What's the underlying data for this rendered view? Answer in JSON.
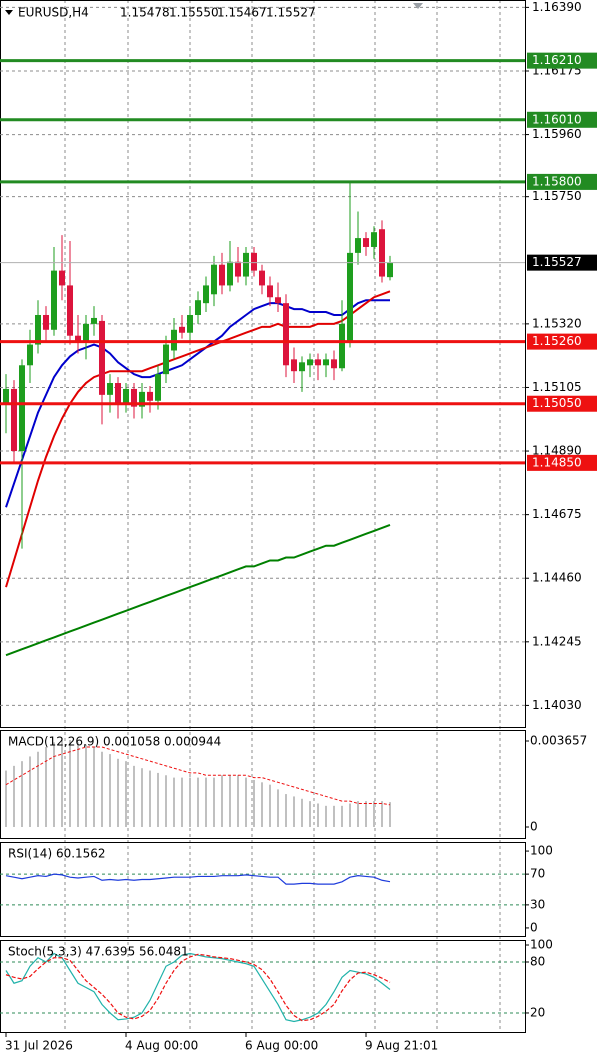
{
  "chart_data": [
    {
      "type": "candlestick",
      "title": "EURUSD,H4",
      "last_ohlc_labels": [
        "1.15478",
        "1.15550",
        "1.15467",
        "1.15527"
      ],
      "open": [
        1.1505,
        1.151,
        1.1489,
        1.1518,
        1.1525,
        1.1535,
        1.153,
        1.155,
        1.1545,
        1.1528,
        1.1526,
        1.1532,
        1.1533,
        1.1508,
        1.1512,
        1.1505,
        1.151,
        1.1504,
        1.1509,
        1.1506,
        1.1515,
        1.1523,
        1.1531,
        1.1529,
        1.1535,
        1.1539,
        1.1542,
        1.1552,
        1.1545,
        1.1553,
        1.1548,
        1.1556,
        1.155,
        1.1545,
        1.1541,
        1.1539,
        1.152,
        1.1516,
        1.1518,
        1.152,
        1.1518,
        1.152,
        1.1517,
        1.1526,
        1.1556,
        1.1561,
        1.1558,
        1.1564,
        1.15478
      ],
      "high": [
        1.1515,
        1.1513,
        1.152,
        1.153,
        1.154,
        1.1538,
        1.1558,
        1.1562,
        1.156,
        1.1535,
        1.1535,
        1.1538,
        1.1535,
        1.1515,
        1.1514,
        1.1512,
        1.1512,
        1.1512,
        1.1511,
        1.1518,
        1.1528,
        1.1534,
        1.1535,
        1.1538,
        1.1543,
        1.1548,
        1.1555,
        1.1556,
        1.156,
        1.1558,
        1.1558,
        1.1558,
        1.1552,
        1.1548,
        1.1546,
        1.1542,
        1.1524,
        1.1521,
        1.1522,
        1.1522,
        1.1522,
        1.1523,
        1.154,
        1.158,
        1.157,
        1.1563,
        1.1565,
        1.1567,
        1.1555
      ],
      "low": [
        1.1495,
        1.1485,
        1.1456,
        1.1512,
        1.1522,
        1.1526,
        1.1528,
        1.154,
        1.1525,
        1.1522,
        1.152,
        1.1528,
        1.1498,
        1.1502,
        1.15,
        1.1502,
        1.15,
        1.15,
        1.1502,
        1.1503,
        1.1512,
        1.152,
        1.1527,
        1.1526,
        1.1532,
        1.1536,
        1.1538,
        1.1542,
        1.1543,
        1.1546,
        1.1545,
        1.1548,
        1.1542,
        1.1538,
        1.1536,
        1.1514,
        1.1512,
        1.1509,
        1.1514,
        1.1513,
        1.1514,
        1.1513,
        1.1516,
        1.1524,
        1.1552,
        1.1555,
        1.1554,
        1.1546,
        1.15467
      ],
      "close": [
        1.151,
        1.1489,
        1.1518,
        1.1525,
        1.1535,
        1.153,
        1.155,
        1.1545,
        1.1528,
        1.1526,
        1.1532,
        1.1534,
        1.1508,
        1.1512,
        1.1505,
        1.151,
        1.1504,
        1.1509,
        1.1506,
        1.1515,
        1.1525,
        1.153,
        1.1529,
        1.1535,
        1.154,
        1.1545,
        1.1552,
        1.1545,
        1.1553,
        1.1548,
        1.1556,
        1.155,
        1.1545,
        1.1541,
        1.1539,
        1.1518,
        1.1516,
        1.1519,
        1.152,
        1.1518,
        1.152,
        1.1517,
        1.1532,
        1.1556,
        1.1561,
        1.1558,
        1.1563,
        1.1548,
        1.15527
      ],
      "color_up": "#1e9e1e",
      "color_down": "#dc143c",
      "overlays": [
        {
          "color": "#0000cc",
          "values": [
            1.147,
            1.1478,
            1.1486,
            1.1494,
            1.1502,
            1.1508,
            1.1514,
            1.1518,
            1.1521,
            1.1523,
            1.1524,
            1.1525,
            1.1524,
            1.1522,
            1.1519,
            1.1517,
            1.1515,
            1.1514,
            1.1514,
            1.1515,
            1.1516,
            1.1517,
            1.1518,
            1.152,
            1.1522,
            1.1524,
            1.1526,
            1.1528,
            1.1531,
            1.1533,
            1.1535,
            1.1537,
            1.1538,
            1.1539,
            1.1539,
            1.1538,
            1.1537,
            1.1537,
            1.1536,
            1.1536,
            1.1536,
            1.1535,
            1.1535,
            1.1537,
            1.1539,
            1.154,
            1.154,
            1.154,
            1.154
          ]
        },
        {
          "color": "#e00000",
          "values": [
            1.1443,
            1.1452,
            1.1461,
            1.147,
            1.1479,
            1.1487,
            1.1494,
            1.15,
            1.1505,
            1.1509,
            1.1512,
            1.1514,
            1.1515,
            1.1516,
            1.1516,
            1.1516,
            1.1516,
            1.1516,
            1.1517,
            1.1518,
            1.1519,
            1.152,
            1.1521,
            1.1522,
            1.1523,
            1.1524,
            1.1525,
            1.1526,
            1.1527,
            1.1528,
            1.1529,
            1.153,
            1.1531,
            1.1531,
            1.1532,
            1.1531,
            1.1531,
            1.1531,
            1.1531,
            1.1532,
            1.1532,
            1.1532,
            1.1533,
            1.1535,
            1.1537,
            1.1539,
            1.1541,
            1.1542,
            1.1543
          ]
        },
        {
          "color": "#008000",
          "values": [
            1.142,
            1.1421,
            1.1422,
            1.1423,
            1.1424,
            1.1425,
            1.1426,
            1.1427,
            1.1428,
            1.1429,
            1.143,
            1.1431,
            1.1432,
            1.1433,
            1.1434,
            1.1435,
            1.1436,
            1.1437,
            1.1438,
            1.1439,
            1.144,
            1.1441,
            1.1442,
            1.1443,
            1.1444,
            1.1445,
            1.1446,
            1.1447,
            1.1448,
            1.1449,
            1.145,
            1.145,
            1.1451,
            1.1452,
            1.1452,
            1.1453,
            1.1453,
            1.1454,
            1.1455,
            1.1456,
            1.1457,
            1.1457,
            1.1458,
            1.1459,
            1.146,
            1.1461,
            1.1462,
            1.1463,
            1.1464
          ]
        }
      ],
      "levels": [
        {
          "value": 1.1621,
          "label": "1.16210",
          "color": "#228b22"
        },
        {
          "value": 1.1601,
          "label": "1.16010",
          "color": "#228b22"
        },
        {
          "value": 1.158,
          "label": "1.15800",
          "color": "#228b22"
        },
        {
          "value": 1.1526,
          "label": "1.15260",
          "color": "#ee1111"
        },
        {
          "value": 1.1505,
          "label": "1.15050",
          "color": "#ee1111"
        },
        {
          "value": 1.1485,
          "label": "1.14850",
          "color": "#ee1111"
        }
      ],
      "ylim": [
        1.13957,
        1.16415
      ],
      "yticks": [
        {
          "value": 1.1639,
          "label": "1.16390"
        },
        1.16175,
        {
          "value": 1.1596,
          "label": "1.15960"
        },
        {
          "value": 1.1575,
          "label": "1.15750"
        },
        {
          "value": 1.1532,
          "label": "1.15320"
        },
        1.15105,
        {
          "value": 1.1489,
          "label": "1.14890"
        },
        1.14675,
        {
          "value": 1.1446,
          "label": "1.14460"
        },
        1.14245,
        {
          "value": 1.1403,
          "label": "1.14030"
        }
      ],
      "xticks": [
        {
          "value": 0,
          "label": "31 Jul 2026"
        },
        {
          "value": 15,
          "label": "4 Aug 00:00"
        },
        {
          "value": 30,
          "label": "6 Aug 00:00"
        },
        {
          "value": 45,
          "label": "9 Aug 21:01"
        }
      ],
      "grid": true
    },
    {
      "type": "macd",
      "title": "MACD(12,26,9) 0.001058 0.000944",
      "values": [
        0.0024,
        0.0026,
        0.0028,
        0.003,
        0.0032,
        0.0034,
        0.0036,
        0.0037,
        0.0037,
        0.0036,
        0.0035,
        0.0034,
        0.0032,
        0.0031,
        0.0029,
        0.0028,
        0.0026,
        0.0025,
        0.0024,
        0.0023,
        0.0022,
        0.0021,
        0.0021,
        0.0021,
        0.0021,
        0.0021,
        0.0021,
        0.0022,
        0.0022,
        0.0022,
        0.0021,
        0.002,
        0.0019,
        0.0018,
        0.0016,
        0.0014,
        0.0013,
        0.0012,
        0.0011,
        0.001,
        0.0009,
        0.0009,
        0.0009,
        0.001,
        0.0011,
        0.0011,
        0.0011,
        0.0011,
        0.001058
      ],
      "color": "#c0c0c0",
      "signal": [
        0.0018,
        0.002,
        0.0022,
        0.0024,
        0.0026,
        0.0028,
        0.003,
        0.0031,
        0.0032,
        0.0033,
        0.0034,
        0.0034,
        0.0034,
        0.0033,
        0.0032,
        0.0031,
        0.003,
        0.0029,
        0.0028,
        0.0027,
        0.0026,
        0.0025,
        0.0024,
        0.0023,
        0.0023,
        0.0022,
        0.0022,
        0.0022,
        0.0022,
        0.0022,
        0.0022,
        0.0021,
        0.0021,
        0.002,
        0.0019,
        0.0018,
        0.0017,
        0.0016,
        0.0015,
        0.0014,
        0.0013,
        0.0012,
        0.0011,
        0.0011,
        0.001,
        0.001,
        0.001,
        0.001,
        0.000944
      ],
      "signal_color": "#ee1111",
      "ylim": [
        -0.000468,
        0.004125
      ],
      "yticks": [
        {
          "value": 0.003657,
          "label": "0.003657"
        },
        0
      ]
    },
    {
      "type": "line",
      "title": "RSI(14) 60.1562",
      "series": [
        {
          "color": "#1e3cdc",
          "values": [
            68,
            66,
            64,
            66,
            68,
            67,
            70,
            69,
            66,
            65,
            66,
            67,
            62,
            63,
            62,
            63,
            62,
            63,
            63,
            64,
            65,
            66,
            66,
            66,
            67,
            67,
            67,
            68,
            68,
            68,
            69,
            68,
            67,
            66,
            66,
            57,
            57,
            58,
            58,
            57,
            57,
            57,
            60,
            66,
            68,
            67,
            66,
            62,
            60.1562
          ]
        }
      ],
      "levels": [
        70,
        30
      ],
      "level_color": "#2e8b57",
      "ylim": [
        -10.5,
        111.8
      ],
      "yticks": [
        100,
        70,
        30,
        0
      ]
    },
    {
      "type": "line",
      "title": "Stoch(5,3,3) 47.6395 56.0481",
      "series": [
        {
          "color": "#20b2aa",
          "values": [
            70,
            55,
            58,
            75,
            85,
            80,
            90,
            85,
            70,
            55,
            50,
            45,
            30,
            20,
            12,
            13,
            15,
            20,
            35,
            55,
            75,
            80,
            88,
            90,
            88,
            86,
            85,
            84,
            82,
            80,
            78,
            75,
            60,
            45,
            30,
            12,
            10,
            12,
            15,
            20,
            30,
            45,
            62,
            70,
            68,
            66,
            62,
            55,
            47.6395
          ]
        },
        {
          "color": "#ee1111",
          "dashed": true,
          "values": [
            65,
            62,
            60,
            63,
            72,
            80,
            85,
            85,
            82,
            70,
            58,
            50,
            42,
            32,
            20,
            15,
            13,
            16,
            23,
            37,
            55,
            70,
            81,
            86,
            89,
            88,
            86,
            85,
            84,
            82,
            80,
            77,
            71,
            60,
            45,
            29,
            17,
            11,
            12,
            16,
            22,
            30,
            46,
            59,
            67,
            68,
            65,
            61,
            56.0481
          ]
        }
      ],
      "levels": [
        80,
        20
      ],
      "level_color": "#2e8b57",
      "ylim": [
        -2.4,
        105.9
      ],
      "yticks": [
        100,
        80,
        20
      ]
    }
  ]
}
